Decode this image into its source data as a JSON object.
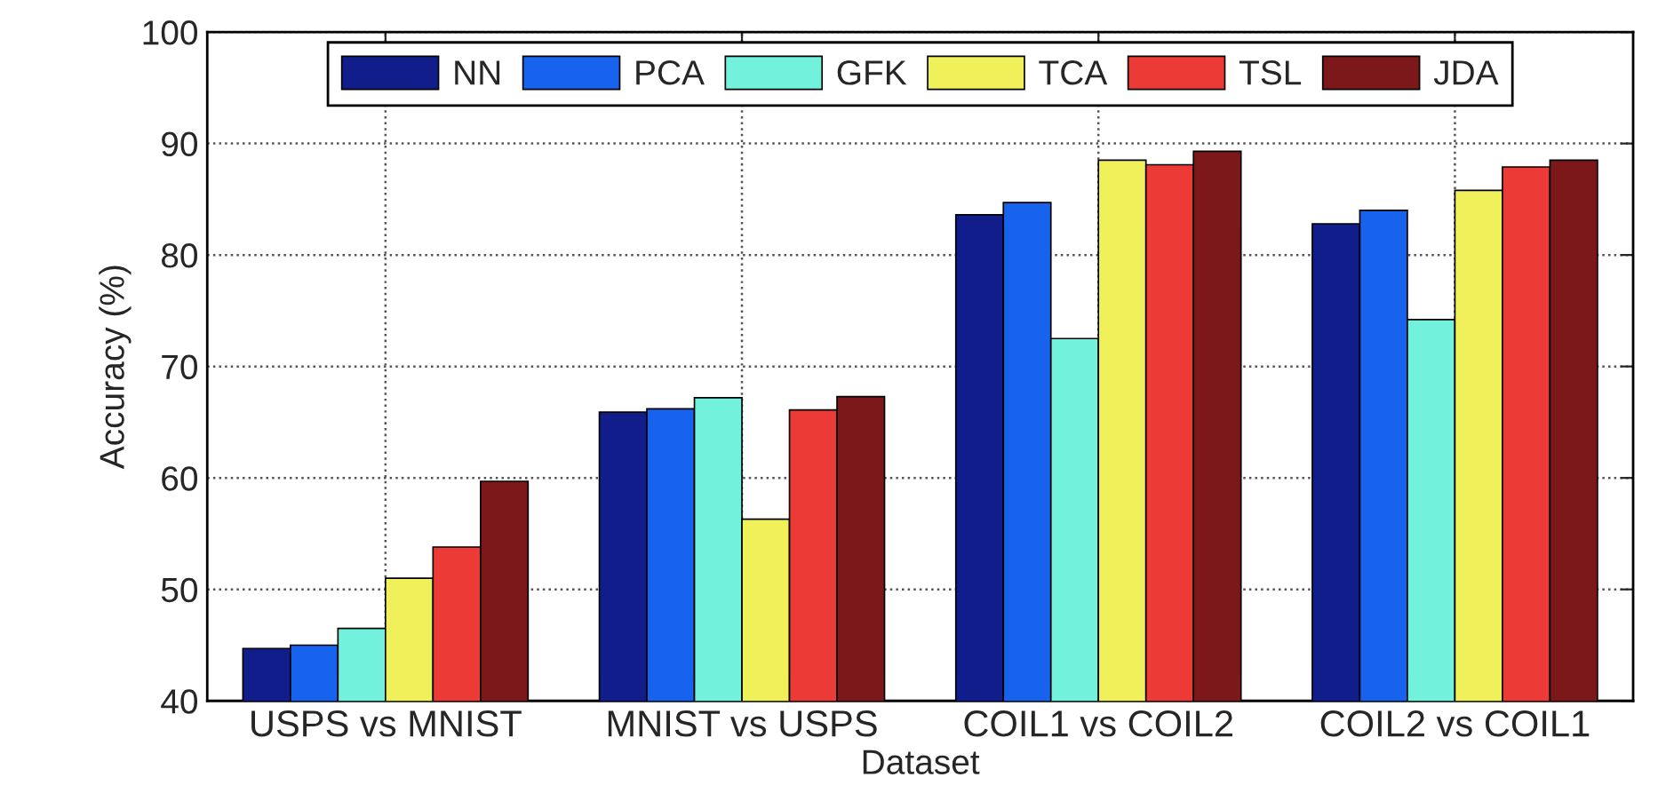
{
  "chart_data": {
    "type": "bar",
    "xlabel": "Dataset",
    "ylabel": "Accuracy (%)",
    "categories": [
      "USPS vs MNIST",
      "MNIST vs USPS",
      "COIL1 vs COIL2",
      "COIL2 vs COIL1"
    ],
    "series": [
      {
        "name": "NN",
        "color": "#111d8a",
        "values": [
          44.7,
          65.9,
          83.6,
          82.8
        ]
      },
      {
        "name": "PCA",
        "color": "#1763ee",
        "values": [
          45.0,
          66.2,
          84.7,
          84.0
        ]
      },
      {
        "name": "GFK",
        "color": "#72f2dc",
        "values": [
          46.5,
          67.2,
          72.5,
          74.2
        ]
      },
      {
        "name": "TCA",
        "color": "#f0f05a",
        "values": [
          51.0,
          56.3,
          88.5,
          85.8
        ]
      },
      {
        "name": "TSL",
        "color": "#ec3b37",
        "values": [
          53.8,
          66.1,
          88.1,
          87.9
        ]
      },
      {
        "name": "JDA",
        "color": "#7d181a",
        "values": [
          59.7,
          67.3,
          89.3,
          88.5
        ]
      }
    ],
    "ylim": [
      40,
      100
    ],
    "yticks": [
      40,
      50,
      60,
      70,
      80,
      90,
      100
    ],
    "grid": true,
    "legend": "top",
    "line_style": "dotted"
  }
}
